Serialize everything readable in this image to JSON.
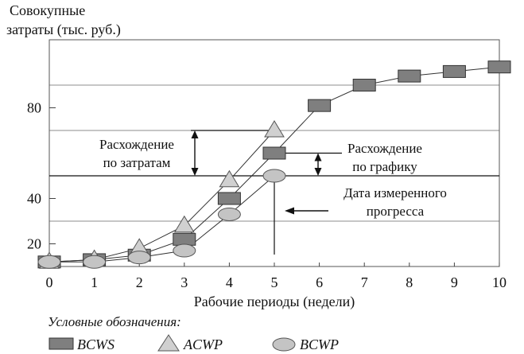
{
  "chart_data": {
    "type": "line",
    "ylabel_line1": "Совокупные",
    "ylabel_line2": "затраты (тыс. руб.)",
    "xlabel": "Рабочие периоды (недели)",
    "x_ticks": [
      0,
      1,
      2,
      3,
      4,
      5,
      6,
      7,
      8,
      9,
      10
    ],
    "y_ticks": [
      20,
      40,
      80
    ],
    "xlim": [
      0,
      10
    ],
    "ylim": [
      10,
      110
    ],
    "grid_y": [
      30,
      50,
      70,
      90
    ],
    "series": [
      {
        "name": "BCWS",
        "marker": "square",
        "color": "#7f7f7f",
        "x": [
          0,
          1,
          2,
          3,
          4,
          5,
          6,
          7,
          8,
          9,
          10
        ],
        "y": [
          12,
          13,
          15,
          22,
          40,
          60,
          81,
          90,
          94,
          96,
          98
        ]
      },
      {
        "name": "ACWP",
        "marker": "triangle",
        "color": "#d0d0d0",
        "x": [
          0,
          1,
          2,
          3,
          4,
          5
        ],
        "y": [
          12,
          13,
          18,
          28,
          48,
          70
        ]
      },
      {
        "name": "BCWP",
        "marker": "ellipse",
        "color": "#c4c4c4",
        "x": [
          0,
          1,
          2,
          3,
          4,
          5
        ],
        "y": [
          12,
          12,
          14,
          17,
          33,
          50
        ]
      }
    ],
    "annotations": {
      "cost_variance": [
        "Расхождение",
        "по затратам"
      ],
      "schedule_variance": [
        "Расхождение",
        "по графику"
      ],
      "status_date": [
        "Дата измеренного",
        "прогресса"
      ]
    },
    "legend": {
      "title": "Условные обозначения:",
      "items": [
        "BCWS",
        "ACWP",
        "BCWP"
      ]
    }
  }
}
